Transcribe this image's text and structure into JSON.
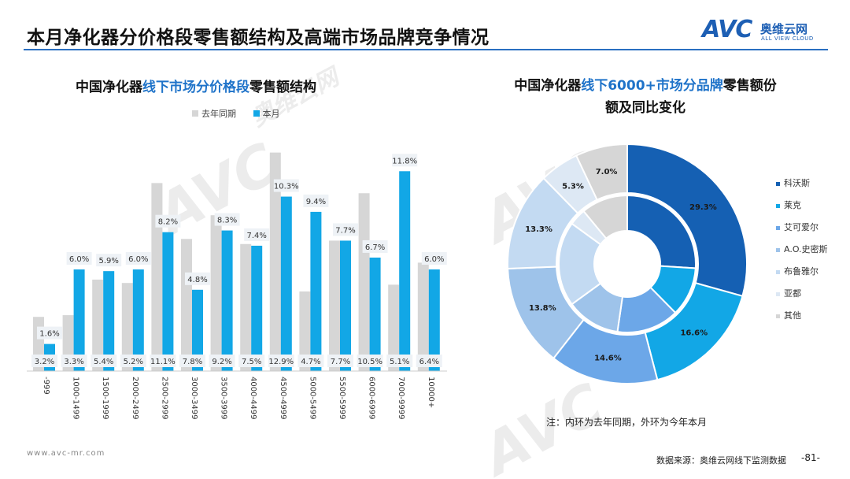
{
  "header": {
    "title": "本月净化器分价格段零售额结构及高端市场品牌竞争情况",
    "logo_mark": "AVC",
    "logo_cn": "奥维云网",
    "logo_en": "ALL VIEW CLOUD"
  },
  "left_title": {
    "pre": "中国净化器",
    "hl": "线下市场分价格段",
    "post": "零售额结构"
  },
  "right_title": {
    "pre": "中国净化器",
    "hl": "线下6000+市场分品牌",
    "post": "零售额份",
    "line2": "额及同比变化"
  },
  "note": "注：内环为去年同期，外环为今年本月",
  "footer": {
    "url": "www.avc-mr.com",
    "source": "数据来源：奥维云网线下监测数据",
    "page": "-81-"
  },
  "colors": {
    "accent": "#1f73c9",
    "bar_current": "#12a7e6",
    "bar_last": "#d6d6d6"
  },
  "chart_data": [
    {
      "type": "bar",
      "categories": [
        "-999",
        "1000-1499",
        "1500-1999",
        "2000-2499",
        "2500-2999",
        "3000-3499",
        "3500-3999",
        "4000-4499",
        "4500-4999",
        "5000-5499",
        "5500-5999",
        "6000-6999",
        "7000-9999",
        "10000+"
      ],
      "series": [
        {
          "name": "去年同期",
          "values": [
            3.2,
            3.3,
            5.4,
            5.2,
            11.1,
            7.8,
            9.2,
            7.5,
            12.9,
            4.7,
            7.7,
            10.5,
            5.1,
            6.4
          ],
          "labels": [
            "3.2%",
            "3.3%",
            "5.4%",
            "5.2%",
            "11.1%",
            "7.8%",
            "9.2%",
            "7.5%",
            "12.9%",
            "4.7%",
            "7.7%",
            "10.5%",
            "5.1%",
            "6.4%"
          ],
          "color": "#d6d6d6"
        },
        {
          "name": "本月",
          "values": [
            1.6,
            6.0,
            5.9,
            6.0,
            8.2,
            4.8,
            8.3,
            7.4,
            10.3,
            9.4,
            7.7,
            6.7,
            11.8,
            6.0
          ],
          "labels": [
            "1.6%",
            "6.0%",
            "5.9%",
            "6.0%",
            "8.2%",
            "4.8%",
            "8.3%",
            "7.4%",
            "10.3%",
            "9.4%",
            "7.7%",
            "6.7%",
            "11.8%",
            "6.0%"
          ],
          "color": "#12a7e6"
        }
      ],
      "ylim": [
        0,
        13.5
      ]
    },
    {
      "type": "pie",
      "brands": [
        {
          "name": "科沃斯",
          "color": "#1560b3"
        },
        {
          "name": "莱克",
          "color": "#12a7e6"
        },
        {
          "name": "艾可爱尔",
          "color": "#6ca7e8"
        },
        {
          "name": "A.O.史密斯",
          "color": "#9ec3ea"
        },
        {
          "name": "布鲁雅尔",
          "color": "#c3daf2"
        },
        {
          "name": "亚都",
          "color": "#dde8f4"
        },
        {
          "name": "其他",
          "color": "#d6d6d6"
        }
      ],
      "outer": {
        "values": [
          29.3,
          16.6,
          14.6,
          13.8,
          13.3,
          5.3,
          7.0
        ],
        "labels": [
          "29.3%",
          "16.6%",
          "14.6%",
          "13.8%",
          "13.3%",
          "5.3%",
          "7.0%"
        ]
      },
      "inner": {
        "values": [
          26.0,
          11.6,
          14.7,
          12.7,
          20.0,
          4.0,
          11.0
        ]
      }
    }
  ]
}
